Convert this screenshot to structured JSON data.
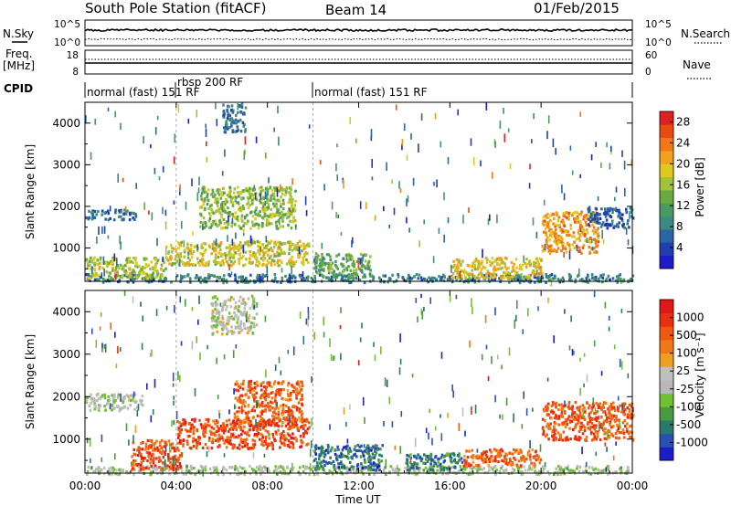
{
  "header": {
    "station": "South Pole Station (fitACF)",
    "beam": "Beam 14",
    "date": "01/Feb/2015"
  },
  "strips": {
    "nsky": {
      "label": "N.Sky",
      "ticks": [
        "10^5",
        "10^0"
      ]
    },
    "nsearch": {
      "label": "N.Search",
      "ticks": [
        "10^5",
        "10^0"
      ]
    },
    "freq": {
      "label_top": "Freq.",
      "label_bottom": "[MHz]",
      "ticks": [
        "18",
        "8"
      ]
    },
    "nave": {
      "label": "Nave",
      "ticks": [
        "60",
        "0"
      ]
    },
    "cpid": {
      "label": "CPID",
      "segments": [
        {
          "label": "normal (fast) 151 RF",
          "start_hour": 0,
          "end_hour": 4
        },
        {
          "label": "rbsp 200 RF",
          "start_hour": 4,
          "end_hour": 10
        },
        {
          "label": "normal (fast) 151 RF",
          "start_hour": 10,
          "end_hour": 24
        }
      ]
    }
  },
  "chart_data": [
    {
      "type": "heatmap",
      "title": "Power",
      "ylabel": "Slant Range [km]",
      "xlabel": "",
      "xlim": [
        0,
        24
      ],
      "ylim": [
        200,
        4500
      ],
      "yticks": [
        1000,
        2000,
        3000,
        4000
      ],
      "colorbar": {
        "label": "Power [dB]",
        "range": [
          0,
          30
        ],
        "ticks": [
          "4",
          "8",
          "12",
          "16",
          "20",
          "24",
          "28"
        ],
        "colors": [
          "#1c1cc8",
          "#2040b0",
          "#2a66a6",
          "#3d8a82",
          "#4a9a60",
          "#6aaa40",
          "#a2c238",
          "#e0c820",
          "#f2a020",
          "#f07818",
          "#e84a10",
          "#e02020"
        ]
      },
      "features": [
        {
          "x": [
            0.0,
            24.0
          ],
          "y": [
            200,
            400
          ],
          "level": 0.25
        },
        {
          "x": [
            0.0,
            2.2
          ],
          "y": [
            1700,
            1950
          ],
          "level": 0.2
        },
        {
          "x": [
            0.0,
            3.5
          ],
          "y": [
            300,
            800
          ],
          "level": 0.55
        },
        {
          "x": [
            3.5,
            9.8
          ],
          "y": [
            600,
            1200
          ],
          "level": 0.6
        },
        {
          "x": [
            5.0,
            9.2
          ],
          "y": [
            1500,
            2500
          ],
          "level": 0.5
        },
        {
          "x": [
            6.0,
            7.0
          ],
          "y": [
            3800,
            4500
          ],
          "level": 0.2
        },
        {
          "x": [
            10.0,
            12.5
          ],
          "y": [
            300,
            900
          ],
          "level": 0.4
        },
        {
          "x": [
            16.0,
            20.0
          ],
          "y": [
            300,
            800
          ],
          "level": 0.65
        },
        {
          "x": [
            20.0,
            22.5
          ],
          "y": [
            900,
            1900
          ],
          "level": 0.75
        },
        {
          "x": [
            22.0,
            24.0
          ],
          "y": [
            1500,
            2000
          ],
          "level": 0.15
        }
      ]
    },
    {
      "type": "heatmap",
      "title": "Velocity",
      "ylabel": "Slant Range [km]",
      "xlabel": "Time UT",
      "xlim": [
        0,
        24
      ],
      "ylim": [
        200,
        4500
      ],
      "xticks": [
        "00:00",
        "04:00",
        "08:00",
        "12:00",
        "16:00",
        "20:00",
        "00:00"
      ],
      "yticks": [
        1000,
        2000,
        3000,
        4000
      ],
      "colorbar": {
        "label": "Velocity [m s⁻¹]",
        "range": [
          -1200,
          1200
        ],
        "ticks": [
          "1000",
          "500",
          "100",
          "25",
          "-25",
          "-100",
          "-500",
          "-1000"
        ],
        "colors": [
          "#1c1cc8",
          "#2a50b8",
          "#2a7a6a",
          "#4a9a40",
          "#70c030",
          "#b8b8b8",
          "#c0c0c0",
          "#f0a020",
          "#f07818",
          "#f05a10",
          "#e83010",
          "#e01818"
        ]
      },
      "features": [
        {
          "x": [
            0.0,
            24.0
          ],
          "y": [
            200,
            400
          ],
          "level": 0.45
        },
        {
          "x": [
            0.0,
            2.5
          ],
          "y": [
            1700,
            2100
          ],
          "level": 0.47
        },
        {
          "x": [
            2.0,
            4.2
          ],
          "y": [
            300,
            1000
          ],
          "level": 0.85
        },
        {
          "x": [
            4.0,
            9.8
          ],
          "y": [
            800,
            1500
          ],
          "level": 0.85
        },
        {
          "x": [
            6.5,
            9.5
          ],
          "y": [
            1400,
            2400
          ],
          "level": 0.8
        },
        {
          "x": [
            5.5,
            7.5
          ],
          "y": [
            3500,
            4400
          ],
          "level": 0.47
        },
        {
          "x": [
            10.0,
            13.0
          ],
          "y": [
            300,
            900
          ],
          "level": 0.15
        },
        {
          "x": [
            14.0,
            16.5
          ],
          "y": [
            300,
            700
          ],
          "level": 0.2
        },
        {
          "x": [
            16.5,
            20.0
          ],
          "y": [
            400,
            800
          ],
          "level": 0.8
        },
        {
          "x": [
            20.0,
            24.0
          ],
          "y": [
            1000,
            1900
          ],
          "level": 0.82
        }
      ]
    }
  ]
}
